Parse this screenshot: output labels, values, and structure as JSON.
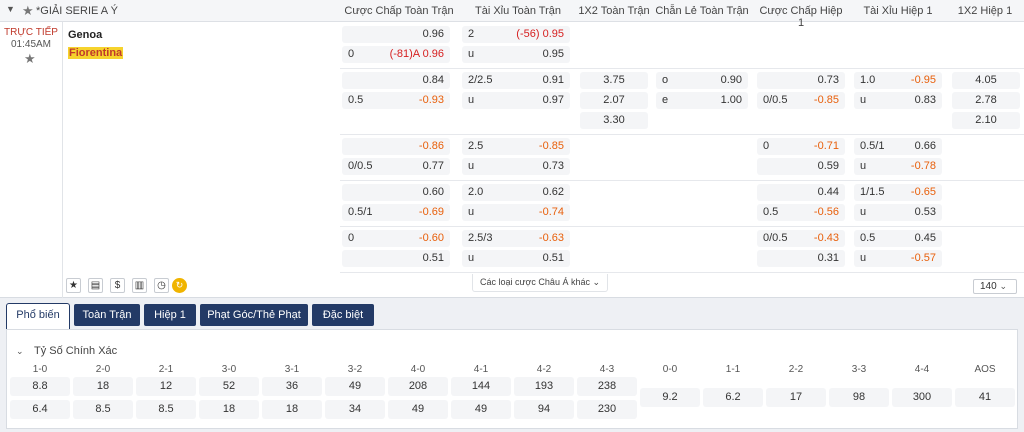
{
  "league": {
    "title": "*GIẢI SERIE A Ý"
  },
  "columns": [
    "Cược Chấp Toàn Trận",
    "Tài Xỉu Toàn Trận",
    "1X2 Toàn Trận",
    "Chẵn Lẻ Toàn Trận",
    "Cược Chấp Hiệp 1",
    "Tài Xỉu Hiệp 1",
    "1X2 Hiệp 1"
  ],
  "match": {
    "status": "TRỰC TIẾP",
    "time": "01:45AM",
    "home": "Genoa",
    "away": "Fiorentina"
  },
  "rows": [
    {
      "hc1": [
        "",
        "0.96"
      ],
      "hc2": [
        "0",
        "(-81)A 0.96"
      ],
      "ou1": [
        "2",
        "(-56) 0.95"
      ],
      "ou2": [
        "u",
        "0.95"
      ]
    },
    {
      "hc1": [
        "",
        "0.84"
      ],
      "hc2": [
        "0.5",
        "-0.93"
      ],
      "ou1": [
        "2/2.5",
        "0.91"
      ],
      "ou2": [
        "u",
        "0.97"
      ],
      "x12": [
        "3.75",
        "2.07",
        "3.30"
      ],
      "oe1": [
        "o",
        "0.90"
      ],
      "oe2": [
        "e",
        "1.00"
      ],
      "h1hc1": [
        "",
        "0.73"
      ],
      "h1hc2": [
        "0/0.5",
        "-0.85"
      ],
      "h1ou1": [
        "1.0",
        "-0.95"
      ],
      "h1ou2": [
        "u",
        "0.83"
      ],
      "h1x12": [
        "4.05",
        "2.78",
        "2.10"
      ]
    },
    {
      "hc1": [
        "",
        "-0.86"
      ],
      "hc2": [
        "0/0.5",
        "0.77"
      ],
      "ou1": [
        "2.5",
        "-0.85"
      ],
      "ou2": [
        "u",
        "0.73"
      ],
      "h1hc1": [
        "0",
        "-0.71"
      ],
      "h1hc2": [
        "",
        "0.59"
      ],
      "h1ou1": [
        "0.5/1",
        "0.66"
      ],
      "h1ou2": [
        "u",
        "-0.78"
      ]
    },
    {
      "hc1": [
        "",
        "0.60"
      ],
      "hc2": [
        "0.5/1",
        "-0.69"
      ],
      "ou1": [
        "2.0",
        "0.62"
      ],
      "ou2": [
        "u",
        "-0.74"
      ],
      "h1hc1": [
        "",
        "0.44"
      ],
      "h1hc2": [
        "0.5",
        "-0.56"
      ],
      "h1ou1": [
        "1/1.5",
        "-0.65"
      ],
      "h1ou2": [
        "u",
        "0.53"
      ]
    },
    {
      "hc1": [
        "0",
        "-0.60"
      ],
      "hc2": [
        "",
        "0.51"
      ],
      "ou1": [
        "2.5/3",
        "-0.63"
      ],
      "ou2": [
        "u",
        "0.51"
      ],
      "h1hc1": [
        "0/0.5",
        "-0.43"
      ],
      "h1hc2": [
        "",
        "0.31"
      ],
      "h1ou1": [
        "0.5",
        "0.45"
      ],
      "h1ou2": [
        "u",
        "-0.57"
      ]
    }
  ],
  "more_label": "Các loại cược Châu Á khác",
  "count": "140",
  "tabs": [
    "Phổ biến",
    "Toàn Trận",
    "Hiệp 1",
    "Phạt Góc/Thẻ Phạt",
    "Đặc biệt"
  ],
  "section_title": "Tỷ Số Chính Xác",
  "scores_home": [
    [
      "1-0",
      "8.8"
    ],
    [
      "2-0",
      "18"
    ],
    [
      "2-1",
      "12"
    ],
    [
      "3-0",
      "52"
    ],
    [
      "3-1",
      "36"
    ],
    [
      "3-2",
      "49"
    ],
    [
      "4-0",
      "208"
    ],
    [
      "4-1",
      "144"
    ],
    [
      "4-2",
      "193"
    ],
    [
      "4-3",
      "238"
    ]
  ],
  "scores_away": [
    "6.4",
    "8.5",
    "8.5",
    "18",
    "18",
    "34",
    "49",
    "49",
    "94",
    "230"
  ],
  "scores_draw": [
    [
      "0-0",
      "9.2"
    ],
    [
      "1-1",
      "6.2"
    ],
    [
      "2-2",
      "17"
    ],
    [
      "3-3",
      "98"
    ],
    [
      "4-4",
      "300"
    ],
    [
      "AOS",
      "41"
    ]
  ],
  "colors": {
    "accent": "#233a66",
    "negative": "#e8600c",
    "live": "#c0392b"
  }
}
